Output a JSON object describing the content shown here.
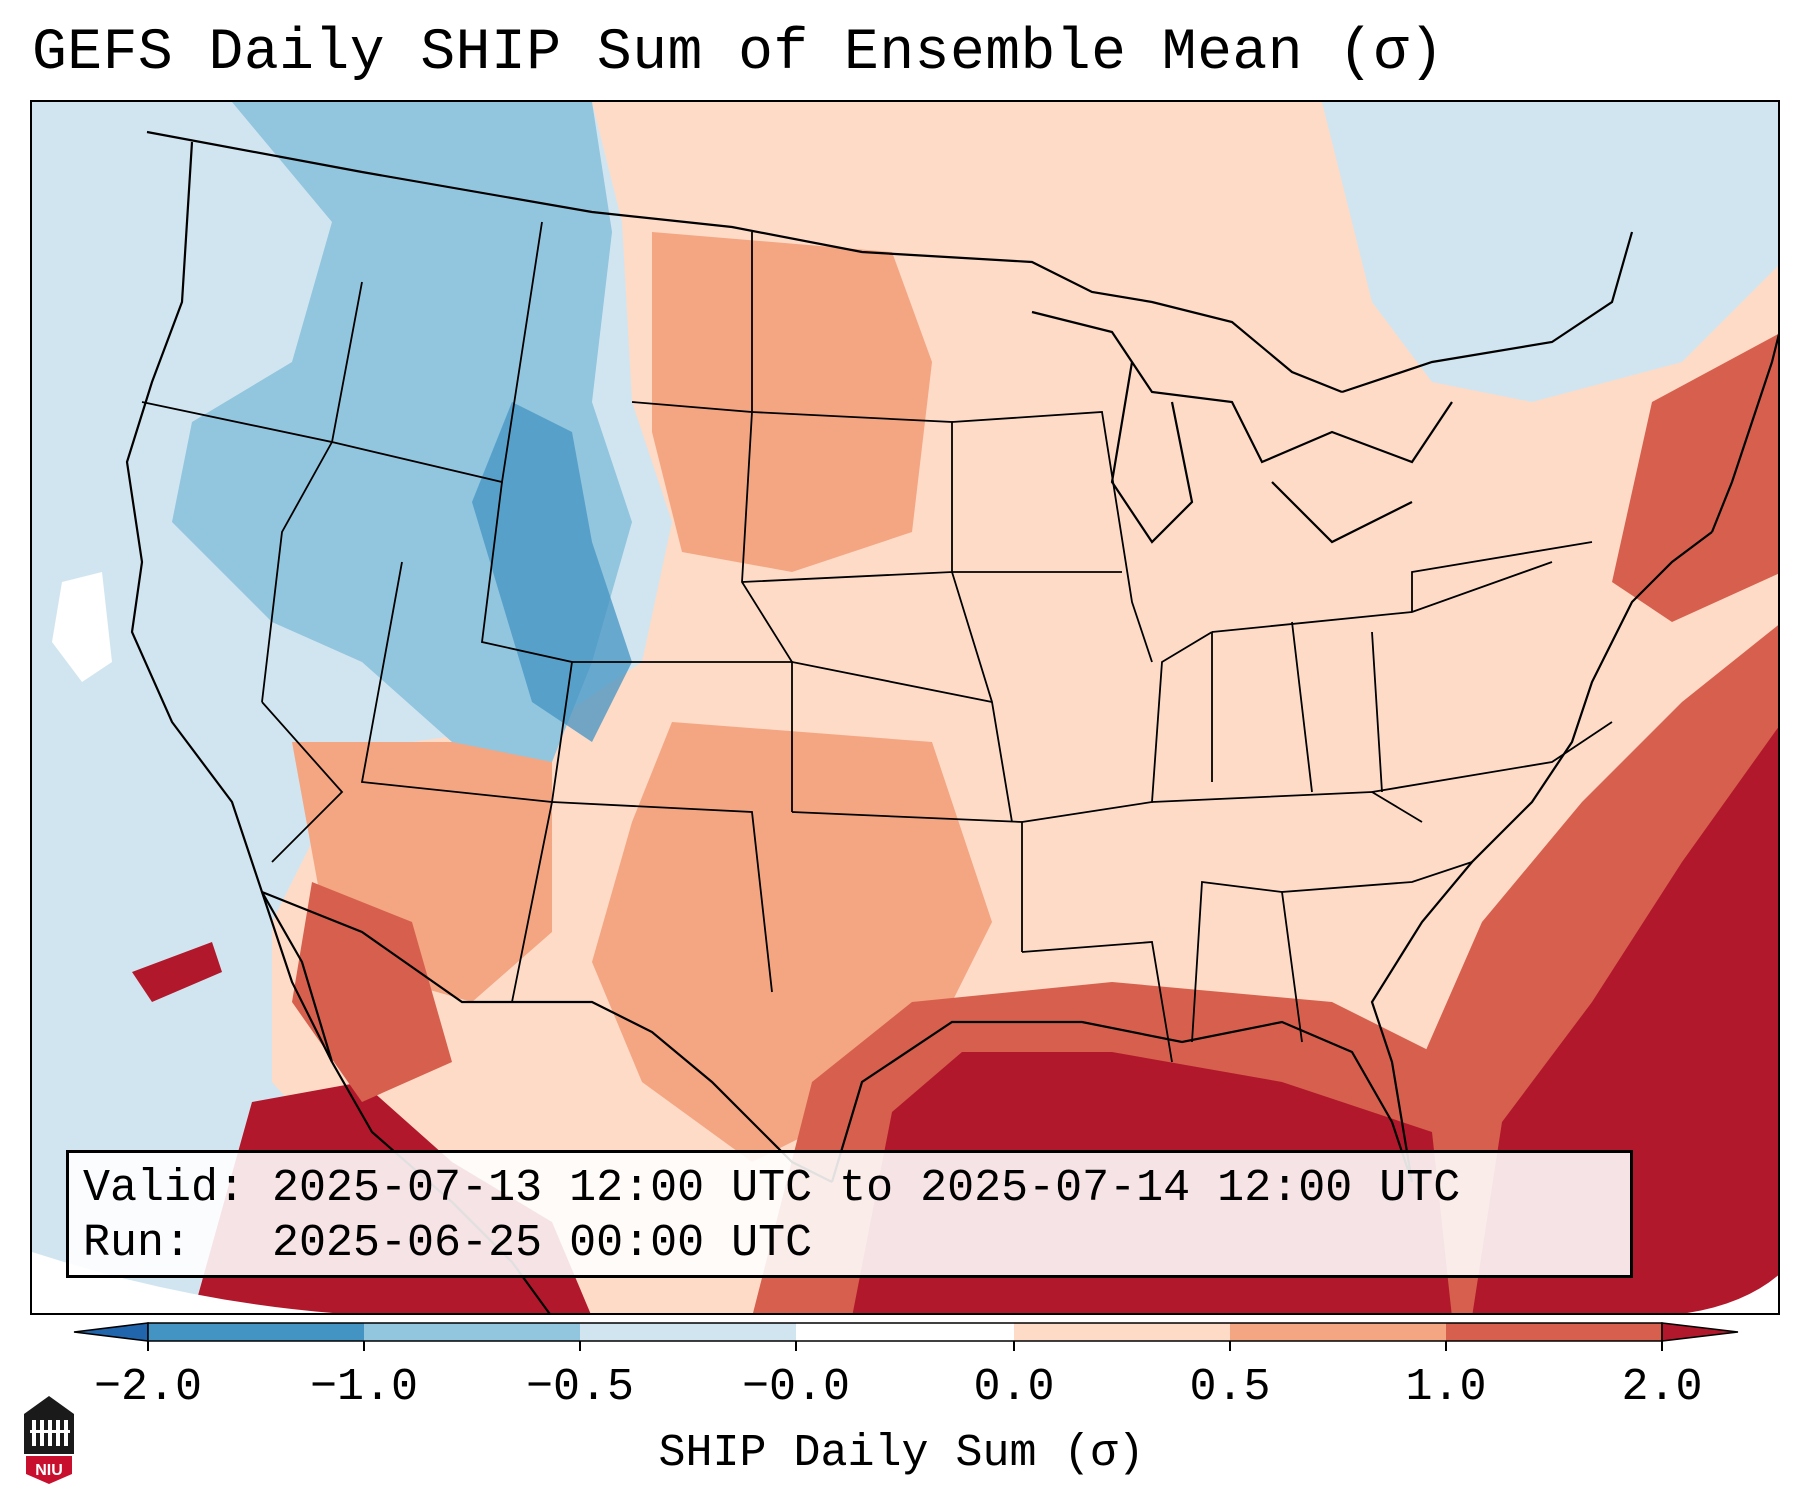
{
  "title": "GEFS Daily SHIP Sum of Ensemble Mean (σ)",
  "info": {
    "valid_line": "Valid: 2025-07-13 12:00 UTC to 2025-07-14 12:00 UTC",
    "run_line": "Run:   2025-06-25 00:00 UTC"
  },
  "colorbar": {
    "label": "SHIP Daily Sum (σ)",
    "tick_labels": [
      "−2.0",
      "−1.0",
      "−0.5",
      "−0.0",
      "0.0",
      "0.5",
      "1.0",
      "2.0"
    ],
    "bins": [
      {
        "range": "< -2.0",
        "color": "#2166ac"
      },
      {
        "range": "-2.0 to -1.0",
        "color": "#4393c3"
      },
      {
        "range": "-1.0 to -0.5",
        "color": "#92c5de"
      },
      {
        "range": "-0.5 to -0.0",
        "color": "#d1e5f0"
      },
      {
        "range": "-0.0 to 0.0",
        "color": "#ffffff"
      },
      {
        "range": "0.0 to 0.5",
        "color": "#fddbc7"
      },
      {
        "range": "0.5 to 1.0",
        "color": "#f4a582"
      },
      {
        "range": "1.0 to 2.0",
        "color": "#d6604d"
      },
      {
        "range": "> 2.0",
        "color": "#b2182b"
      }
    ]
  },
  "logo": {
    "text": "NIU",
    "color": "#c8102e"
  }
}
